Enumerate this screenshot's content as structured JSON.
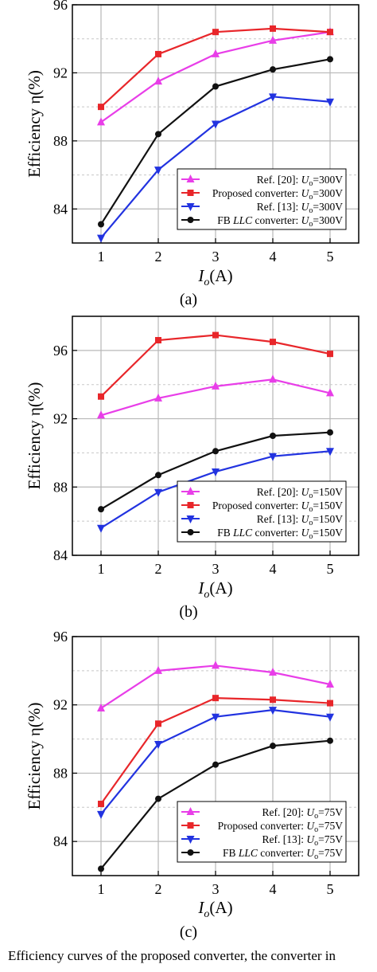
{
  "figure": {
    "caption_fragment": "Efficiency curves of the proposed converter, the converter in"
  },
  "chart_data": [
    {
      "type": "line",
      "panel_label": "(a)",
      "xlabel_main": "I",
      "xlabel_sub": "o",
      "xlabel_unit": "(A)",
      "ylabel": "Efficiency η(%)",
      "x_ticks": [
        "1",
        "2",
        "3",
        "4",
        "5"
      ],
      "y_ticks": [
        "84",
        "88",
        "92",
        "96"
      ],
      "xlim": [
        0.5,
        5.5
      ],
      "ylim": [
        82,
        96
      ],
      "grid": true,
      "legend_position": "bottom-right",
      "x": [
        1,
        2,
        3,
        4,
        5
      ],
      "series": [
        {
          "name_pre": "Ref. [20]: ",
          "name_var": "U",
          "name_sub": "o",
          "name_post": "=300V",
          "color": "#e83ee8",
          "marker": "triangle-up",
          "values": [
            89.1,
            91.5,
            93.1,
            93.9,
            94.4
          ]
        },
        {
          "name_pre": "Proposed converter: ",
          "name_var": "U",
          "name_sub": "o",
          "name_post": "=300V",
          "color": "#e8262a",
          "marker": "square",
          "values": [
            90.0,
            93.1,
            94.4,
            94.6,
            94.4
          ]
        },
        {
          "name_pre": "Ref. [13]: ",
          "name_var": "U",
          "name_sub": "o",
          "name_post": "=300V",
          "color": "#2233e0",
          "marker": "triangle-down",
          "values": [
            82.3,
            86.3,
            89.0,
            90.6,
            90.3
          ]
        },
        {
          "name_pre": "FB ",
          "name_italic": "LLC",
          "name_mid": " converter: ",
          "name_var": "U",
          "name_sub": "o",
          "name_post": "=300V",
          "color": "#111111",
          "marker": "circle",
          "values": [
            83.1,
            88.4,
            91.2,
            92.2,
            92.8
          ]
        }
      ]
    },
    {
      "type": "line",
      "panel_label": "(b)",
      "xlabel_main": "I",
      "xlabel_sub": "o",
      "xlabel_unit": "(A)",
      "ylabel": "Efficiency η(%)",
      "x_ticks": [
        "1",
        "2",
        "3",
        "4",
        "5"
      ],
      "y_ticks": [
        "84",
        "88",
        "92",
        "96"
      ],
      "xlim": [
        0.5,
        5.5
      ],
      "ylim": [
        84,
        98
      ],
      "grid": true,
      "legend_position": "bottom-right",
      "x": [
        1,
        2,
        3,
        4,
        5
      ],
      "series": [
        {
          "name_pre": "Ref. [20]: ",
          "name_var": "U",
          "name_sub": "o",
          "name_post": "=150V",
          "color": "#e83ee8",
          "marker": "triangle-up",
          "values": [
            92.2,
            93.2,
            93.9,
            94.3,
            93.5
          ]
        },
        {
          "name_pre": "Proposed converter: ",
          "name_var": "U",
          "name_sub": "o",
          "name_post": "=150V",
          "color": "#e8262a",
          "marker": "square",
          "values": [
            93.3,
            96.6,
            96.9,
            96.5,
            95.8
          ]
        },
        {
          "name_pre": "Ref. [13]: ",
          "name_var": "U",
          "name_sub": "o",
          "name_post": "=150V",
          "color": "#2233e0",
          "marker": "triangle-down",
          "values": [
            85.6,
            87.7,
            88.9,
            89.8,
            90.1
          ]
        },
        {
          "name_pre": "FB ",
          "name_italic": "LLC",
          "name_mid": " converter: ",
          "name_var": "U",
          "name_sub": "o",
          "name_post": "=150V",
          "color": "#111111",
          "marker": "circle",
          "values": [
            86.7,
            88.7,
            90.1,
            91.0,
            91.2
          ]
        }
      ]
    },
    {
      "type": "line",
      "panel_label": "(c)",
      "xlabel_main": "I",
      "xlabel_sub": "o",
      "xlabel_unit": "(A)",
      "ylabel": "Efficiency η(%)",
      "x_ticks": [
        "1",
        "2",
        "3",
        "4",
        "5"
      ],
      "y_ticks": [
        "84",
        "88",
        "92",
        "96"
      ],
      "xlim": [
        0.5,
        5.5
      ],
      "ylim": [
        82,
        96
      ],
      "grid": true,
      "legend_position": "bottom-right",
      "x": [
        1,
        2,
        3,
        4,
        5
      ],
      "series": [
        {
          "name_pre": "Ref. [20]: ",
          "name_var": "U",
          "name_sub": "o",
          "name_post": "=75V",
          "color": "#e83ee8",
          "marker": "triangle-up",
          "values": [
            91.8,
            94.0,
            94.3,
            93.9,
            93.2
          ]
        },
        {
          "name_pre": "Proposed converter: ",
          "name_var": "U",
          "name_sub": "o",
          "name_post": "=75V",
          "color": "#e8262a",
          "marker": "square",
          "values": [
            86.2,
            90.9,
            92.4,
            92.3,
            92.1
          ]
        },
        {
          "name_pre": "Ref. [13]: ",
          "name_var": "U",
          "name_sub": "o",
          "name_post": "=75V",
          "color": "#2233e0",
          "marker": "triangle-down",
          "values": [
            85.6,
            89.7,
            91.3,
            91.7,
            91.3
          ]
        },
        {
          "name_pre": "FB ",
          "name_italic": "LLC",
          "name_mid": " converter: ",
          "name_var": "U",
          "name_sub": "o",
          "name_post": "=75V",
          "color": "#111111",
          "marker": "circle",
          "values": [
            82.4,
            86.5,
            88.5,
            89.6,
            89.9
          ]
        }
      ]
    }
  ]
}
